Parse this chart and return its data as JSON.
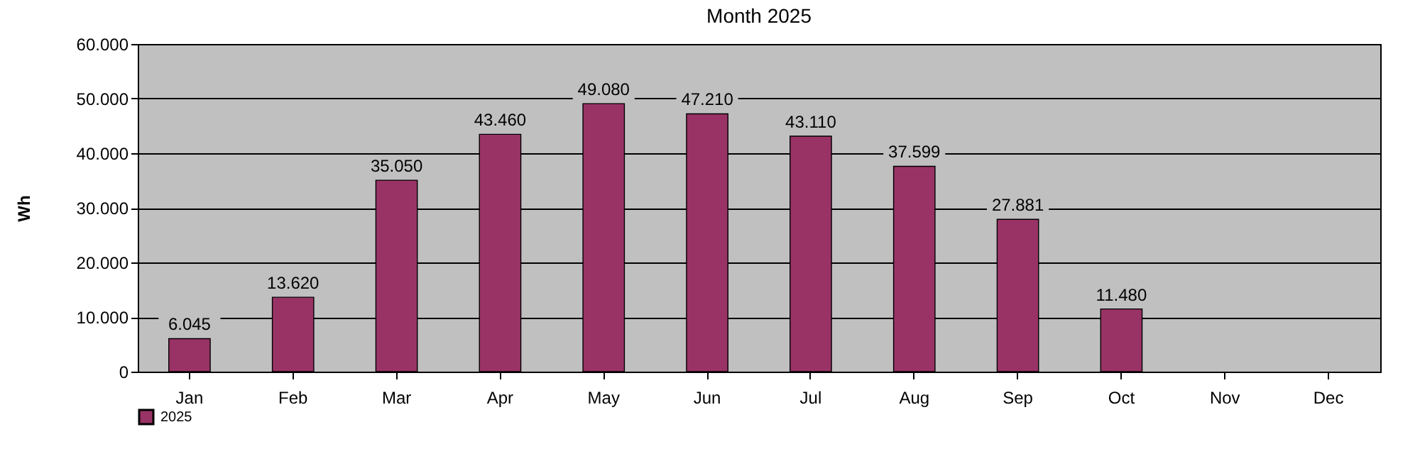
{
  "chart_data": {
    "type": "bar",
    "title": "Month 2025",
    "ylabel": "Wh",
    "categories": [
      "Jan",
      "Feb",
      "Mar",
      "Apr",
      "May",
      "Jun",
      "Jul",
      "Aug",
      "Sep",
      "Oct",
      "Nov",
      "Dec"
    ],
    "series": [
      {
        "name": "2025",
        "color": "#993366",
        "values": [
          6045,
          13620,
          35050,
          43460,
          49080,
          47210,
          43110,
          37599,
          27881,
          11480,
          null,
          null
        ],
        "value_labels": [
          "6.045",
          "13.620",
          "35.050",
          "43.460",
          "49.080",
          "47.210",
          "43.110",
          "37.599",
          "27.881",
          "11.480",
          null,
          null
        ]
      }
    ],
    "ylim": [
      0,
      60000
    ],
    "yticks": [
      0,
      {
        "value": 10000,
        "label": "10.000"
      },
      {
        "value": 20000,
        "label": "20.000"
      },
      {
        "value": 30000,
        "label": "30.000"
      },
      {
        "value": 40000,
        "label": "40.000"
      },
      {
        "value": 50000,
        "label": "50.000"
      },
      {
        "value": 60000,
        "label": "60.000"
      }
    ],
    "grid": "y",
    "legend": "bottom"
  }
}
